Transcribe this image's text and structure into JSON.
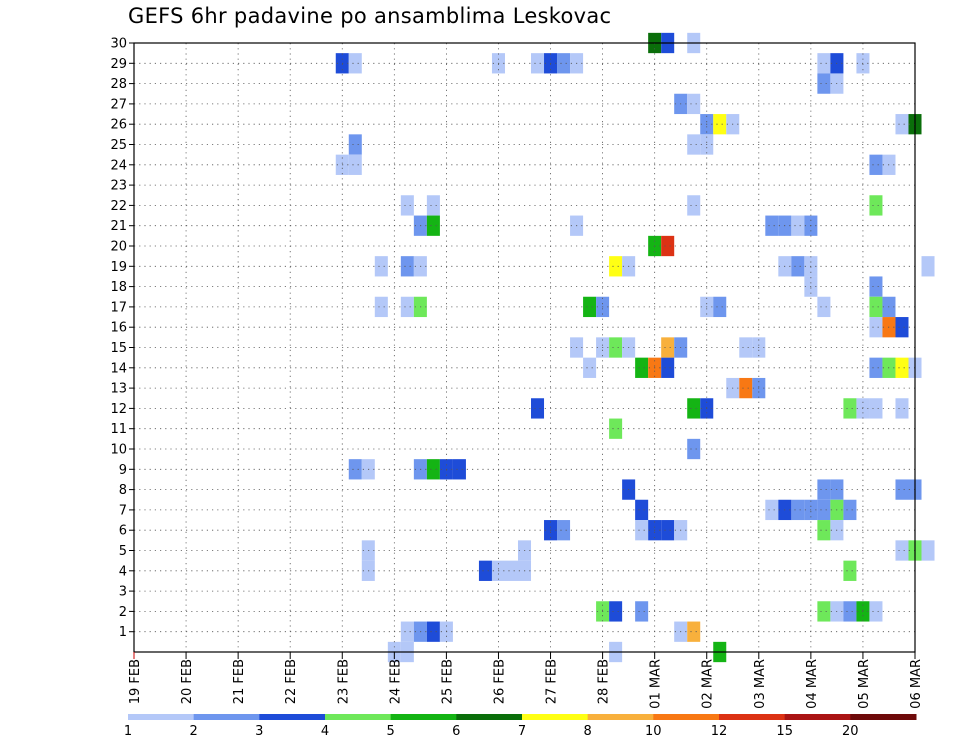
{
  "title": "GEFS 6hr padavine po ansamblima Leskovac",
  "chart_data": {
    "type": "heatmap",
    "title": "GEFS 6hr padavine po ansamblima Leskovac",
    "xlabel": "",
    "ylabel": "",
    "x_tick_labels": [
      "19 FEB",
      "20 FEB",
      "21 FEB",
      "22 FEB",
      "23 FEB",
      "24 FEB",
      "25 FEB",
      "26 FEB",
      "27 FEB",
      "28 FEB",
      "01 MAR",
      "02 MAR",
      "03 MAR",
      "04 MAR",
      "05 MAR",
      "06 MAR"
    ],
    "y_tick_labels": [
      "1",
      "2",
      "3",
      "4",
      "5",
      "6",
      "7",
      "8",
      "9",
      "10",
      "11",
      "12",
      "13",
      "14",
      "15",
      "16",
      "17",
      "18",
      "19",
      "20",
      "21",
      "22",
      "23",
      "24",
      "25",
      "26",
      "27",
      "28",
      "29",
      "30"
    ],
    "x_range_days": [
      0,
      15
    ],
    "y_range": [
      0,
      30
    ],
    "time_step_hours": 6,
    "grid": "dotted",
    "legend": {
      "placement": "bottom",
      "labels": [
        "1",
        "2",
        "3",
        "4",
        "5",
        "6",
        "7",
        "8",
        "10",
        "12",
        "15",
        "20"
      ],
      "colors": [
        "#b4c8f8",
        "#6e96ee",
        "#1e4cd8",
        "#6ee85a",
        "#14b414",
        "#0a6e0a",
        "#ffff14",
        "#f8b03c",
        "#f87814",
        "#dc3214",
        "#aa1414",
        "#6e0a0a"
      ]
    },
    "level_colors": {
      "1": "#b4c8f8",
      "2": "#6e96ee",
      "3": "#1e4cd8",
      "4": "#6ee85a",
      "5": "#14b414",
      "6": "#0a6e0a",
      "7": "#ffff14",
      "8": "#f8b03c",
      "9": "#f87814",
      "10": "#dc3214",
      "11": "#aa1414",
      "12": "#6e0a0a"
    },
    "cells": [
      [
        30,
        [
          [
            40,
            6
          ],
          [
            41,
            3
          ],
          [
            43,
            1
          ]
        ]
      ],
      [
        29,
        [
          [
            16,
            3
          ],
          [
            17,
            1
          ],
          [
            28,
            1
          ],
          [
            31,
            1
          ],
          [
            32,
            3
          ],
          [
            33,
            2
          ],
          [
            34,
            1
          ],
          [
            53,
            1
          ],
          [
            54,
            3
          ],
          [
            56,
            1
          ]
        ]
      ],
      [
        28,
        [
          [
            53,
            2
          ],
          [
            54,
            1
          ]
        ]
      ],
      [
        27,
        [
          [
            42,
            2
          ],
          [
            43,
            1
          ]
        ]
      ],
      [
        26,
        [
          [
            44,
            2
          ],
          [
            45,
            7
          ],
          [
            46,
            1
          ],
          [
            59,
            1
          ],
          [
            60,
            6
          ]
        ]
      ],
      [
        25,
        [
          [
            17,
            2
          ],
          [
            43,
            1
          ],
          [
            44,
            1
          ]
        ]
      ],
      [
        24,
        [
          [
            16,
            1
          ],
          [
            17,
            1
          ],
          [
            57,
            2
          ],
          [
            58,
            1
          ]
        ]
      ],
      [
        22,
        [
          [
            21,
            1
          ],
          [
            23,
            1
          ],
          [
            43,
            1
          ],
          [
            57,
            4
          ]
        ]
      ],
      [
        21,
        [
          [
            22,
            2
          ],
          [
            23,
            5
          ],
          [
            34,
            1
          ],
          [
            49,
            2
          ],
          [
            50,
            2
          ],
          [
            51,
            1
          ],
          [
            52,
            2
          ]
        ]
      ],
      [
        20,
        [
          [
            40,
            5
          ],
          [
            41,
            10
          ]
        ]
      ],
      [
        19,
        [
          [
            19,
            1
          ],
          [
            21,
            2
          ],
          [
            22,
            1
          ],
          [
            37,
            7
          ],
          [
            38,
            1
          ],
          [
            50,
            1
          ],
          [
            51,
            2
          ],
          [
            52,
            1
          ],
          [
            61,
            1
          ]
        ]
      ],
      [
        18,
        [
          [
            52,
            1
          ],
          [
            57,
            2
          ]
        ]
      ],
      [
        17,
        [
          [
            19,
            1
          ],
          [
            21,
            1
          ],
          [
            22,
            4
          ],
          [
            35,
            5
          ],
          [
            36,
            2
          ],
          [
            44,
            1
          ],
          [
            45,
            2
          ],
          [
            53,
            1
          ],
          [
            57,
            4
          ],
          [
            58,
            2
          ]
        ]
      ],
      [
        16,
        [
          [
            57,
            1
          ],
          [
            58,
            9
          ],
          [
            59,
            3
          ]
        ]
      ],
      [
        15,
        [
          [
            34,
            1
          ],
          [
            36,
            1
          ],
          [
            37,
            4
          ],
          [
            38,
            1
          ],
          [
            41,
            8
          ],
          [
            42,
            2
          ],
          [
            47,
            1
          ],
          [
            48,
            1
          ]
        ]
      ],
      [
        14,
        [
          [
            35,
            1
          ],
          [
            39,
            5
          ],
          [
            40,
            9
          ],
          [
            41,
            3
          ],
          [
            57,
            2
          ],
          [
            58,
            4
          ],
          [
            59,
            7
          ],
          [
            60,
            1
          ]
        ]
      ],
      [
        13,
        [
          [
            46,
            1
          ],
          [
            47,
            9
          ],
          [
            48,
            2
          ]
        ]
      ],
      [
        12,
        [
          [
            31,
            3
          ],
          [
            43,
            5
          ],
          [
            44,
            3
          ],
          [
            55,
            4
          ],
          [
            56,
            1
          ],
          [
            57,
            1
          ],
          [
            59,
            1
          ]
        ]
      ],
      [
        11,
        [
          [
            37,
            4
          ]
        ]
      ],
      [
        10,
        [
          [
            43,
            2
          ]
        ]
      ],
      [
        9,
        [
          [
            17,
            2
          ],
          [
            18,
            1
          ],
          [
            22,
            2
          ],
          [
            23,
            5
          ],
          [
            24,
            3
          ],
          [
            25,
            3
          ]
        ]
      ],
      [
        8,
        [
          [
            38,
            3
          ],
          [
            53,
            2
          ],
          [
            54,
            2
          ],
          [
            59,
            2
          ],
          [
            60,
            2
          ]
        ]
      ],
      [
        7,
        [
          [
            39,
            3
          ],
          [
            49,
            1
          ],
          [
            50,
            3
          ],
          [
            51,
            2
          ],
          [
            52,
            2
          ],
          [
            53,
            2
          ],
          [
            54,
            4
          ],
          [
            55,
            2
          ]
        ]
      ],
      [
        6,
        [
          [
            32,
            3
          ],
          [
            33,
            2
          ],
          [
            39,
            1
          ],
          [
            40,
            3
          ],
          [
            41,
            3
          ],
          [
            42,
            1
          ],
          [
            53,
            4
          ],
          [
            54,
            1
          ]
        ]
      ],
      [
        5,
        [
          [
            18,
            1
          ],
          [
            30,
            1
          ],
          [
            59,
            1
          ],
          [
            60,
            4
          ],
          [
            61,
            1
          ]
        ]
      ],
      [
        4,
        [
          [
            18,
            1
          ],
          [
            27,
            3
          ],
          [
            28,
            1
          ],
          [
            29,
            1
          ],
          [
            30,
            1
          ],
          [
            55,
            4
          ]
        ]
      ],
      [
        2,
        [
          [
            36,
            4
          ],
          [
            37,
            3
          ],
          [
            39,
            2
          ],
          [
            53,
            4
          ],
          [
            54,
            1
          ],
          [
            55,
            2
          ],
          [
            56,
            5
          ],
          [
            57,
            1
          ]
        ]
      ],
      [
        1,
        [
          [
            21,
            1
          ],
          [
            22,
            2
          ],
          [
            23,
            3
          ],
          [
            24,
            1
          ],
          [
            42,
            1
          ],
          [
            43,
            8
          ]
        ]
      ],
      [
        0,
        [
          [
            20,
            1
          ],
          [
            21,
            1
          ],
          [
            37,
            1
          ],
          [
            45,
            5
          ]
        ]
      ]
    ]
  }
}
